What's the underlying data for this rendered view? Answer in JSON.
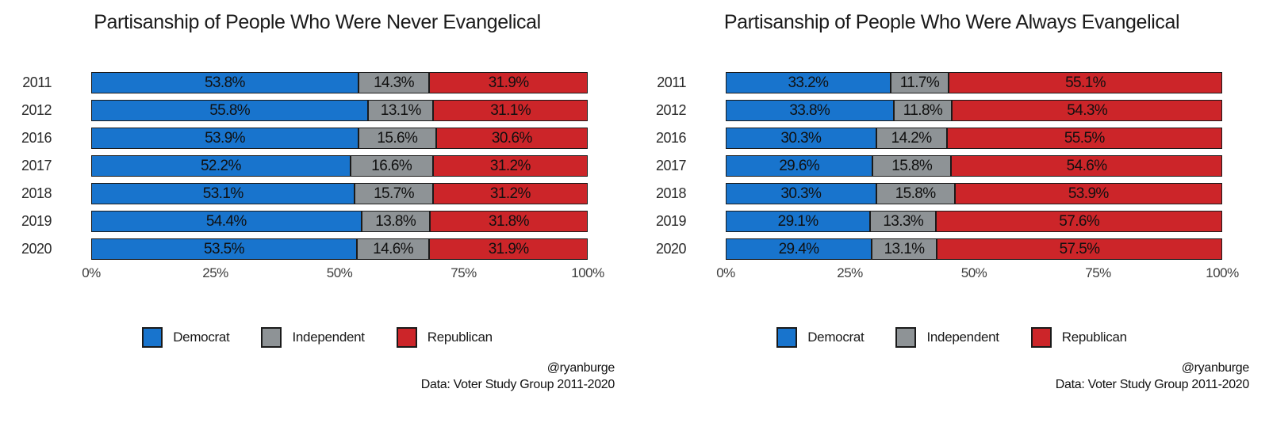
{
  "page": {
    "background": "#ffffff"
  },
  "chart_data": [
    {
      "type": "bar",
      "stacked": true,
      "orientation": "horizontal",
      "title": "Partisanship of People Who Were Never Evangelical",
      "categories": [
        "2011",
        "2012",
        "2016",
        "2017",
        "2018",
        "2019",
        "2020"
      ],
      "series": [
        {
          "name": "Democrat",
          "color": "#1874CD",
          "values": [
            53.8,
            55.8,
            53.9,
            52.2,
            53.1,
            54.4,
            53.5
          ]
        },
        {
          "name": "Independent",
          "color": "#8E9396",
          "values": [
            14.3,
            13.1,
            15.6,
            16.6,
            15.7,
            13.8,
            14.6
          ]
        },
        {
          "name": "Republican",
          "color": "#CC2529",
          "values": [
            31.9,
            31.1,
            30.6,
            31.2,
            31.2,
            31.8,
            31.9
          ]
        }
      ],
      "xlim": [
        0,
        100
      ],
      "x_ticks": [
        "0%",
        "25%",
        "50%",
        "75%",
        "100%"
      ],
      "value_suffix": "%",
      "legend_position": "bottom",
      "bar_labels_shown": true,
      "grid": false,
      "credit_line1": "@ryanburge",
      "credit_line2": "Data: Voter Study Group 2011-2020"
    },
    {
      "type": "bar",
      "stacked": true,
      "orientation": "horizontal",
      "title": "Partisanship of People Who Were Always Evangelical",
      "categories": [
        "2011",
        "2012",
        "2016",
        "2017",
        "2018",
        "2019",
        "2020"
      ],
      "series": [
        {
          "name": "Democrat",
          "color": "#1874CD",
          "values": [
            33.2,
            33.8,
            30.3,
            29.6,
            30.3,
            29.1,
            29.4
          ]
        },
        {
          "name": "Independent",
          "color": "#8E9396",
          "values": [
            11.7,
            11.8,
            14.2,
            15.8,
            15.8,
            13.3,
            13.1
          ]
        },
        {
          "name": "Republican",
          "color": "#CC2529",
          "values": [
            55.1,
            54.3,
            55.5,
            54.6,
            53.9,
            57.6,
            57.5
          ]
        }
      ],
      "xlim": [
        0,
        100
      ],
      "x_ticks": [
        "0%",
        "25%",
        "50%",
        "75%",
        "100%"
      ],
      "value_suffix": "%",
      "legend_position": "bottom",
      "bar_labels_shown": true,
      "grid": false,
      "credit_line1": "@ryanburge",
      "credit_line2": "Data: Voter Study Group 2011-2020"
    }
  ]
}
